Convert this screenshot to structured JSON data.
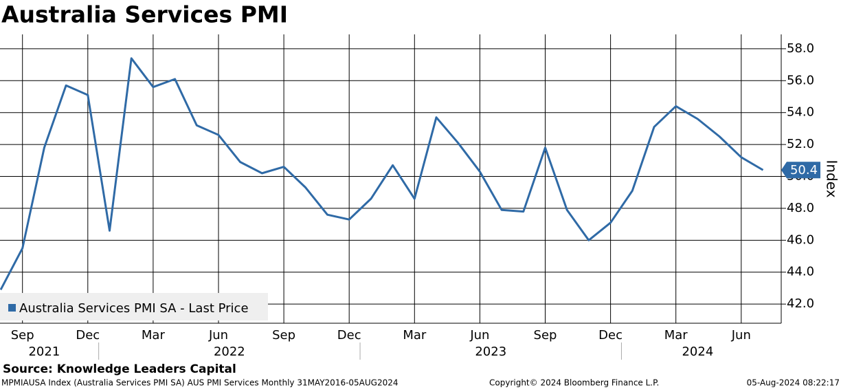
{
  "chart_data": {
    "type": "line",
    "title": "Australia Services PMI",
    "y_axis_label": "Index",
    "source": "Source: Knowledge Leaders Capital",
    "footer_left": "MPMIAUSA Index (Australia Services PMI SA) AUS PMI Services  Monthly 31MAY2016-05AUG2024",
    "footer_center": "Copyright© 2024 Bloomberg Finance L.P.",
    "footer_right": "05-Aug-2024 08:22:17",
    "categories": [
      null,
      "Sep",
      null,
      null,
      "Dec",
      null,
      null,
      "Mar",
      null,
      null,
      "Jun",
      null,
      null,
      "Sep",
      null,
      null,
      "Dec",
      null,
      null,
      "Mar",
      null,
      null,
      "Jun",
      null,
      null,
      "Sep",
      null,
      null,
      "Dec",
      null,
      null,
      "Mar",
      null,
      null,
      "Jun",
      null
    ],
    "year_groups": [
      {
        "label": "2021",
        "size": 5
      },
      {
        "label": "2022",
        "size": 12
      },
      {
        "label": "2023",
        "size": 12
      },
      {
        "label": "2024",
        "size": 7
      }
    ],
    "series": [
      {
        "name": "Australia Services PMI SA - Last Price",
        "color": "#2f6aa6",
        "values": [
          42.9,
          45.5,
          51.8,
          55.7,
          55.1,
          46.6,
          57.4,
          55.6,
          56.1,
          53.2,
          52.6,
          50.9,
          50.2,
          50.6,
          49.3,
          47.6,
          47.3,
          48.6,
          50.7,
          48.6,
          53.7,
          52.1,
          50.3,
          47.9,
          47.8,
          51.8,
          47.9,
          46.0,
          47.1,
          49.1,
          53.1,
          54.4,
          53.6,
          52.5,
          51.2,
          50.4
        ]
      }
    ],
    "ylim": [
      40.8,
      58.9
    ],
    "yticks": [
      {
        "value": 42,
        "label": "42.0"
      },
      {
        "value": 44,
        "label": "44.0"
      },
      {
        "value": 46,
        "label": "46.0"
      },
      {
        "value": 48,
        "label": "48.0"
      },
      {
        "value": 50,
        "label": "50.0"
      },
      {
        "value": 52,
        "label": "52.0"
      },
      {
        "value": 54,
        "label": "54.0"
      },
      {
        "value": 56,
        "label": "56.0"
      },
      {
        "value": 58,
        "label": "58.0"
      }
    ],
    "grid": true,
    "legend": "lower left"
  }
}
